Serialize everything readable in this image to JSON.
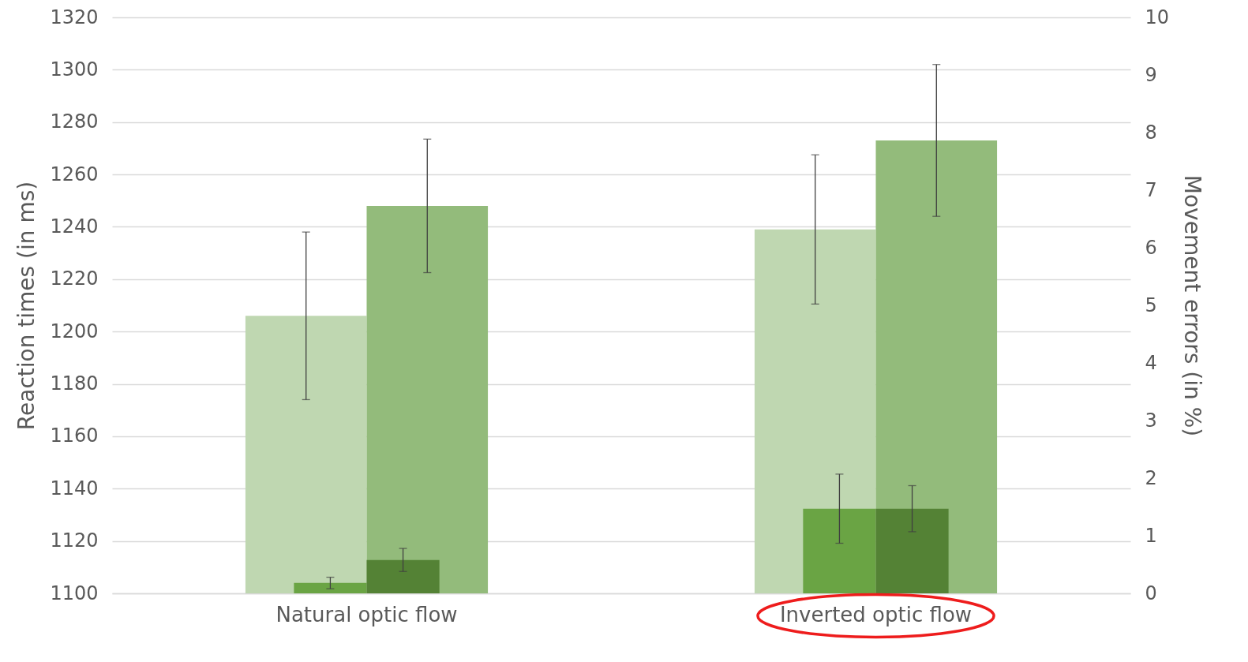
{
  "chart_data": {
    "type": "bar",
    "categories": [
      "Natural optic flow",
      "Inverted optic flow"
    ],
    "ylabel": "Reaction times (in ms)",
    "y2label": "Movement errors (in %)",
    "ylim": [
      1100,
      1320
    ],
    "yticks": [
      1100,
      1120,
      1140,
      1160,
      1180,
      1200,
      1220,
      1240,
      1260,
      1280,
      1300,
      1320
    ],
    "y2lim": [
      0,
      10
    ],
    "y2ticks": [
      0,
      1,
      2,
      3,
      4,
      5,
      6,
      7,
      8,
      9,
      10
    ],
    "grid": "y",
    "legend": false,
    "series": [
      {
        "color": "#bfd7b1",
        "values": [
          1206,
          1239
        ],
        "errors": [
          32,
          28.5
        ]
      },
      {
        "color": "#93bb7b",
        "values": [
          1248,
          1273
        ],
        "errors": [
          25.5,
          29
        ]
      },
      {
        "color": "#6aa444",
        "values": [
          0.18,
          1.47
        ],
        "errors": [
          0.1,
          0.6
        ],
        "axis": "y2"
      },
      {
        "color": "#548235",
        "values": [
          0.58,
          1.47
        ],
        "errors": [
          0.2,
          0.4
        ],
        "axis": "y2"
      }
    ]
  }
}
